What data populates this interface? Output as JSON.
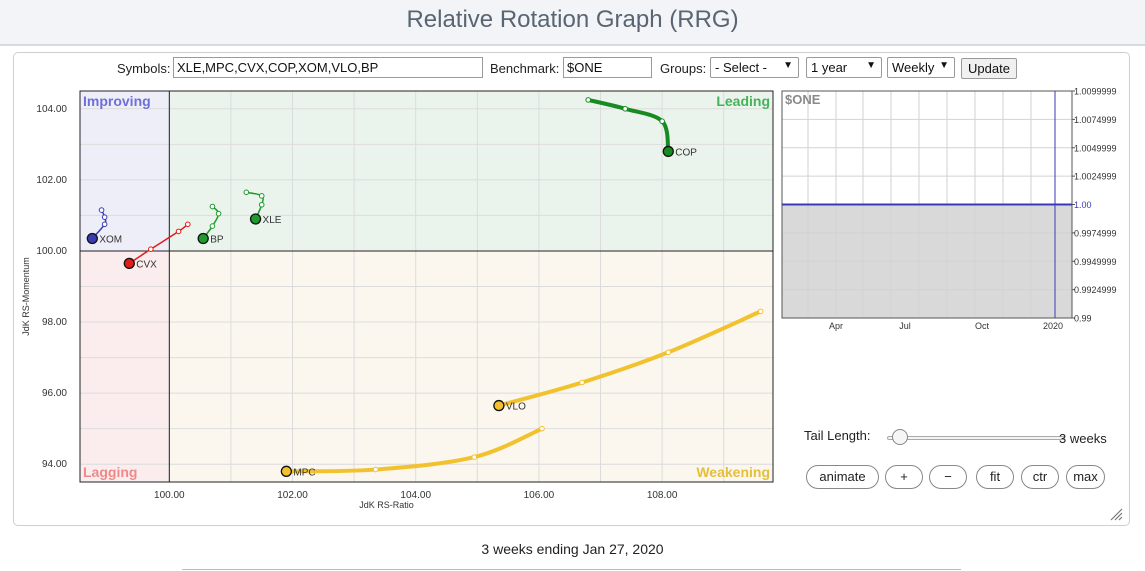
{
  "page_title": "Relative Rotation Graph (RRG)",
  "controls": {
    "symbols_label": "Symbols:",
    "symbols_value": "XLE,MPC,CVX,COP,XOM,VLO,BP",
    "benchmark_label": "Benchmark:",
    "benchmark_value": "$ONE",
    "groups_label": "Groups:",
    "groups_selected": "- Select -",
    "period_selected": "1 year",
    "frequency_selected": "Weekly",
    "update_label": "Update"
  },
  "chart_data": [
    {
      "type": "scatter",
      "xlabel": "JdK RS-Ratio",
      "ylabel": "JdK RS-Momentum",
      "xlim": [
        98.55,
        109.8
      ],
      "ylim": [
        93.5,
        104.5
      ],
      "x_ticks": [
        "100.00",
        "102.00",
        "104.00",
        "106.00",
        "108.00"
      ],
      "y_ticks": [
        "94.00",
        "96.00",
        "98.00",
        "100.00",
        "102.00",
        "104.00"
      ],
      "center": [
        100,
        100
      ],
      "quadrants": [
        {
          "name": "Improving",
          "color": "#6e70d8",
          "fill": "#eeeef9"
        },
        {
          "name": "Leading",
          "color": "#46b25a",
          "fill": "#eaf4ec"
        },
        {
          "name": "Lagging",
          "color": "#f08a8a",
          "fill": "#fbeced"
        },
        {
          "name": "Weakening",
          "color": "#e6be3a",
          "fill": "#fbf7ee"
        }
      ],
      "series": [
        {
          "name": "COP",
          "color": "#178a22",
          "stroke": "thick",
          "points": [
            [
              106.8,
              104.25
            ],
            [
              107.4,
              104.0
            ],
            [
              108.0,
              103.65
            ],
            [
              108.1,
              102.8
            ]
          ]
        },
        {
          "name": "XLE",
          "color": "#1f9a2c",
          "stroke": "thin",
          "points": [
            [
              101.25,
              101.65
            ],
            [
              101.5,
              101.55
            ],
            [
              101.5,
              101.3
            ],
            [
              101.4,
              100.9
            ]
          ]
        },
        {
          "name": "BP",
          "color": "#1f9a2c",
          "stroke": "thin",
          "points": [
            [
              100.7,
              101.25
            ],
            [
              100.8,
              101.05
            ],
            [
              100.7,
              100.7
            ],
            [
              100.55,
              100.35
            ]
          ]
        },
        {
          "name": "XOM",
          "color": "#3b3bb5",
          "stroke": "thin",
          "points": [
            [
              98.9,
              101.15
            ],
            [
              98.95,
              100.95
            ],
            [
              98.95,
              100.75
            ],
            [
              98.75,
              100.35
            ]
          ]
        },
        {
          "name": "CVX",
          "color": "#e21b1b",
          "stroke": "thin",
          "points": [
            [
              100.3,
              100.75
            ],
            [
              100.15,
              100.55
            ],
            [
              99.7,
              100.05
            ],
            [
              99.35,
              99.65
            ]
          ]
        },
        {
          "name": "VLO",
          "color": "#f2c12e",
          "stroke": "thick",
          "points": [
            [
              109.6,
              98.3
            ],
            [
              108.1,
              97.15
            ],
            [
              106.7,
              96.3
            ],
            [
              105.35,
              95.65
            ]
          ]
        },
        {
          "name": "MPC",
          "color": "#f2c12e",
          "stroke": "thick",
          "points": [
            [
              106.05,
              95.0
            ],
            [
              104.95,
              94.2
            ],
            [
              103.35,
              93.85
            ],
            [
              101.9,
              93.8
            ]
          ]
        }
      ]
    },
    {
      "type": "line",
      "series_label": "$ONE",
      "x_ticks": [
        "Apr",
        "Jul",
        "Oct",
        "2020"
      ],
      "y_ticks": [
        "1.0099999",
        "1.0074999",
        "1.0049999",
        "1.0024999",
        "1.00",
        "0.9974999",
        "0.9949999",
        "0.9924999",
        "0.99"
      ],
      "ylim": [
        0.99,
        1.01
      ],
      "current_value": 1.0,
      "line_color": "#3a3ab8"
    }
  ],
  "tail": {
    "label": "Tail Length:",
    "value_text": "3 weeks",
    "weeks": 3
  },
  "buttons": {
    "animate": "animate",
    "plus": "+",
    "minus": "−",
    "fit": "fit",
    "ctr": "ctr",
    "max": "max"
  },
  "footer": "3 weeks ending Jan 27, 2020"
}
